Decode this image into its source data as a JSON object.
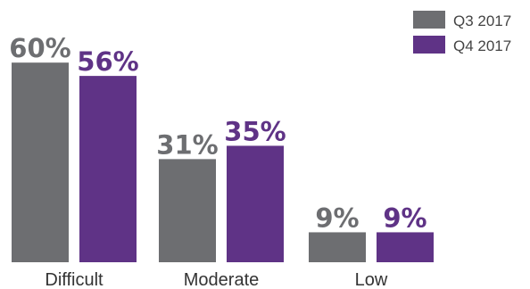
{
  "chart_data": {
    "type": "bar",
    "categories": [
      "Difficult",
      "Moderate",
      "Low"
    ],
    "series": [
      {
        "name": "Q3 2017",
        "values": [
          60,
          31,
          9
        ],
        "labels": [
          "60%",
          "31%",
          "9%"
        ],
        "color": "#6d6e71"
      },
      {
        "name": "Q4 2017",
        "values": [
          56,
          35,
          9
        ],
        "labels": [
          "56%",
          "35%",
          "9%"
        ],
        "color": "#5f3386"
      }
    ],
    "ylim": [
      0,
      60
    ],
    "grid": false,
    "legend": "top-right"
  }
}
